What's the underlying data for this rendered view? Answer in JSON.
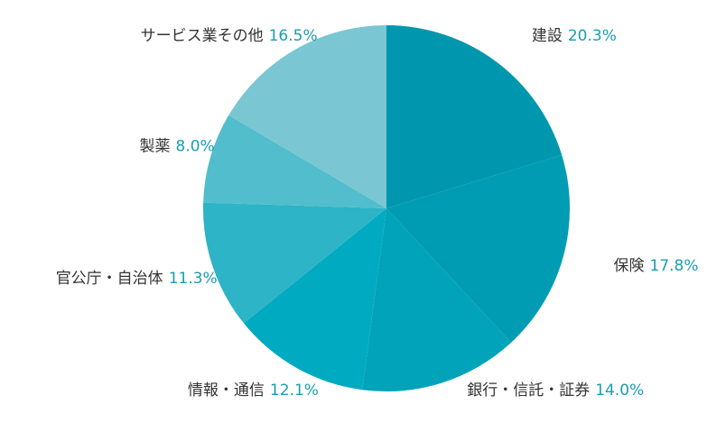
{
  "chart_data": {
    "type": "pie",
    "categories": [
      "建設",
      "保険",
      "銀行・信託・証券",
      "情報・通信",
      "官公庁・自治体",
      "製薬",
      "サービス業その他"
    ],
    "values": [
      20.3,
      17.8,
      14.0,
      12.1,
      11.3,
      8.0,
      16.5
    ],
    "value_labels": [
      "20.3%",
      "17.8%",
      "14.0%",
      "12.1%",
      "11.3%",
      "8.0%",
      "16.5%"
    ],
    "colors": [
      "#0097ae",
      "#009cb3",
      "#00a3b9",
      "#00aac0",
      "#2db4c6",
      "#52bdcc",
      "#7ac6d3"
    ],
    "label_color": "#1a9db3"
  }
}
